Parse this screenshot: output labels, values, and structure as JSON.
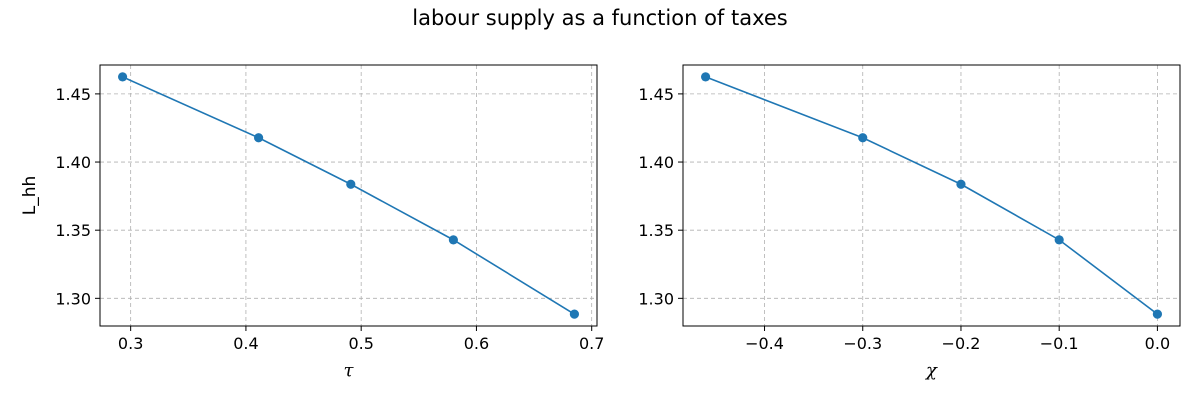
{
  "figure": {
    "suptitle": "labour supply as a function of taxes"
  },
  "chart_data": [
    {
      "type": "line",
      "title": "",
      "xlabel": "τ",
      "ylabel": "L_hh",
      "x": [
        0.293,
        0.411,
        0.491,
        0.58,
        0.685
      ],
      "series": [
        {
          "values": [
            1.4625,
            1.4178,
            1.3837,
            1.3429,
            1.2884
          ],
          "color": "#1f77b4",
          "marker": "circle"
        }
      ],
      "xlim": [
        0.2734,
        0.7046
      ],
      "ylim": [
        1.2797,
        1.4712
      ],
      "xticks": [
        0.3,
        0.4,
        0.5,
        0.6,
        0.7
      ],
      "xtick_labels": [
        "0.3",
        "0.4",
        "0.5",
        "0.6",
        "0.7"
      ],
      "yticks": [
        1.3,
        1.35,
        1.4,
        1.45
      ],
      "ytick_labels": [
        "1.30",
        "1.35",
        "1.40",
        "1.45"
      ],
      "grid": true
    },
    {
      "type": "line",
      "title": "",
      "xlabel": "χ",
      "ylabel": "",
      "x": [
        -0.46,
        -0.3,
        -0.2,
        -0.1,
        0.0
      ],
      "series": [
        {
          "values": [
            1.4625,
            1.4178,
            1.3837,
            1.3429,
            1.2884
          ],
          "color": "#1f77b4",
          "marker": "circle"
        }
      ],
      "xlim": [
        -0.483,
        0.023
      ],
      "ylim": [
        1.2797,
        1.4712
      ],
      "xticks": [
        -0.4,
        -0.3,
        -0.2,
        -0.1,
        0.0
      ],
      "xtick_labels": [
        "−0.4",
        "−0.3",
        "−0.2",
        "−0.1",
        "0.0"
      ],
      "yticks": [
        1.3,
        1.35,
        1.4,
        1.45
      ],
      "ytick_labels": [
        "1.30",
        "1.35",
        "1.40",
        "1.45"
      ],
      "grid": true
    }
  ]
}
